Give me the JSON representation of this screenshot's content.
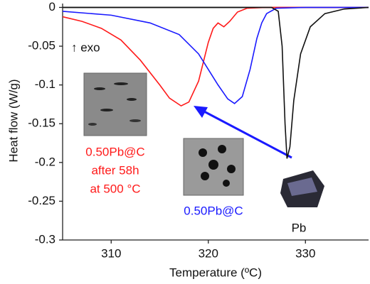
{
  "chart_data": {
    "type": "line",
    "xlabel": "Temperature (ºC)",
    "ylabel": "Heat flow (W/g)",
    "xlim": [
      305,
      336.5
    ],
    "xticks": [
      310,
      320,
      330
    ],
    "ylim": [
      -0.3,
      0.005
    ],
    "yticks": [
      0,
      -0.05,
      -0.1,
      -0.15,
      -0.2,
      -0.25,
      -0.3
    ],
    "series": [
      {
        "color": "#ff1a1a",
        "x": [
          305,
          307,
          309,
          311,
          313,
          315,
          316,
          317.2,
          318,
          319,
          320,
          320.5,
          321,
          321.6,
          322.2,
          323,
          324,
          326,
          336.5
        ],
        "values": [
          -0.012,
          -0.018,
          -0.027,
          -0.042,
          -0.068,
          -0.1,
          -0.117,
          -0.127,
          -0.122,
          -0.095,
          -0.045,
          -0.027,
          -0.02,
          -0.025,
          -0.018,
          -0.006,
          -0.001,
          0,
          0
        ]
      },
      {
        "color": "#1a1aff",
        "x": [
          305,
          310,
          314,
          317,
          319,
          320,
          321,
          322,
          322.7,
          323.5,
          324.3,
          325,
          325.5,
          326,
          327,
          330,
          336.5
        ],
        "values": [
          -0.005,
          -0.01,
          -0.02,
          -0.035,
          -0.06,
          -0.08,
          -0.1,
          -0.118,
          -0.124,
          -0.115,
          -0.08,
          -0.04,
          -0.02,
          -0.008,
          -0.001,
          0,
          0
        ]
      },
      {
        "color": "#111111",
        "x": [
          305,
          326.5,
          327.2,
          327.6,
          327.9,
          328.1,
          328.4,
          328.8,
          329.5,
          330.5,
          332,
          334,
          336.5
        ],
        "values": [
          0,
          0,
          -0.005,
          -0.05,
          -0.15,
          -0.195,
          -0.18,
          -0.12,
          -0.06,
          -0.025,
          -0.008,
          -0.002,
          0
        ]
      }
    ],
    "annotations": [
      {
        "lines": [
          "↑ exo"
        ],
        "color": "#111111"
      },
      {
        "lines": [
          "0.50Pb@C",
          "after 58h",
          "at 500 °C"
        ],
        "color": "#ff1a1a"
      },
      {
        "lines": [
          "0.50Pb@C"
        ],
        "color": "#1a1aff"
      },
      {
        "lines": [
          "Pb"
        ],
        "color": "#111111"
      }
    ]
  }
}
